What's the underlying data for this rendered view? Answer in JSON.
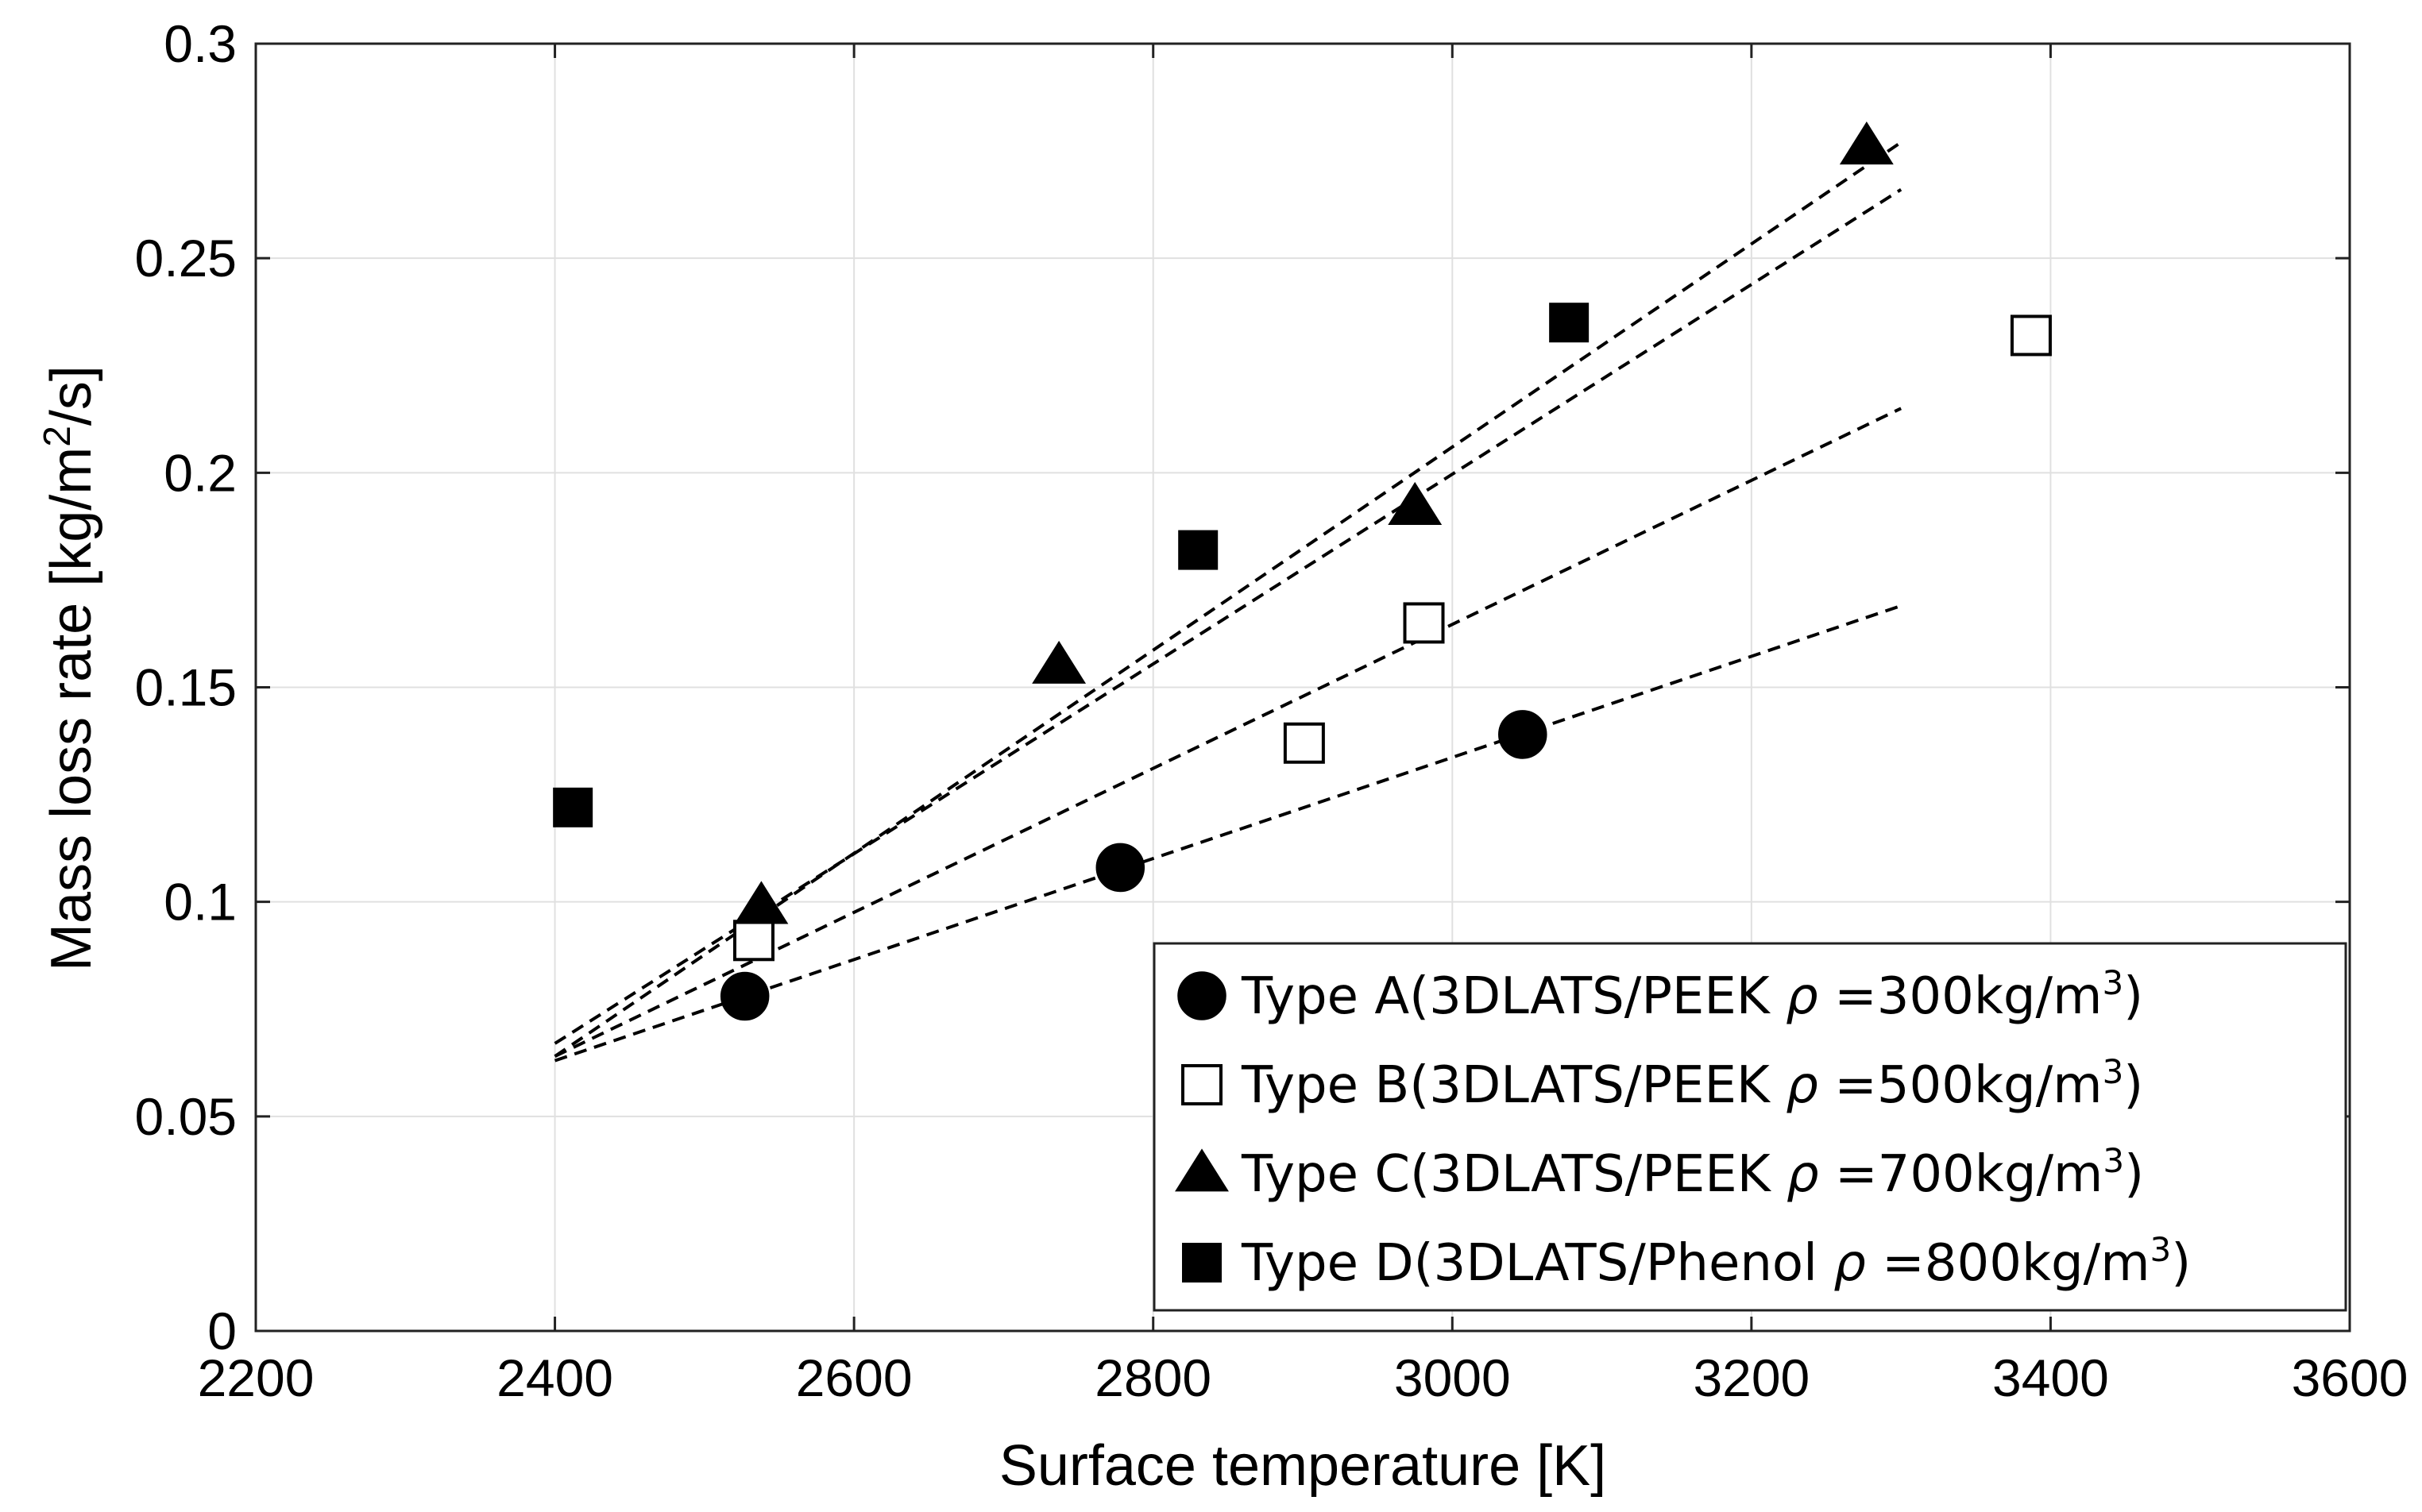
{
  "chart_data": {
    "type": "scatter",
    "xlabel": "Surface temperature [K]",
    "ylabel_main": "Mass loss rate [kg/m",
    "ylabel_sup": "2",
    "ylabel_end": "/s]",
    "xlim": [
      2200,
      3600
    ],
    "ylim": [
      0,
      0.3
    ],
    "grid": true,
    "legend_position": "bottom-right",
    "x_ticks": [
      2200,
      2400,
      2600,
      2800,
      3000,
      3200,
      3400,
      3600
    ],
    "x_tick_labels": [
      "2200",
      "2400",
      "2600",
      "2800",
      "3000",
      "3200",
      "3400",
      "3600"
    ],
    "y_ticks": [
      0,
      0.05,
      0.1,
      0.15,
      0.2,
      0.25,
      0.3
    ],
    "y_tick_labels": [
      "0",
      "0.05",
      "0.1",
      "0.15",
      "0.2",
      "0.25",
      "0.3"
    ],
    "series": [
      {
        "name": "Type A",
        "label_prefix": "Type A(3DLATS/PEEK",
        "rho_symbol": "ρ",
        "label_value": "=300kg/m",
        "label_sup": "3",
        "label_suffix": ")",
        "marker": "circle",
        "filled": true,
        "points": [
          [
            2527,
            0.078
          ],
          [
            2778,
            0.108
          ],
          [
            3047,
            0.139
          ]
        ],
        "fit": [
          [
            2400,
            0.063
          ],
          [
            3300,
            0.169
          ]
        ]
      },
      {
        "name": "Type B",
        "label_prefix": "Type B(3DLATS/PEEK",
        "rho_symbol": "ρ",
        "label_value": "=500kg/m",
        "label_sup": "3",
        "label_suffix": ")",
        "marker": "square",
        "filled": false,
        "points": [
          [
            2533,
            0.091
          ],
          [
            2901,
            0.137
          ],
          [
            2981,
            0.165
          ],
          [
            3387,
            0.232
          ]
        ],
        "fit": [
          [
            2400,
            0.064
          ],
          [
            3300,
            0.215
          ]
        ]
      },
      {
        "name": "Type C",
        "label_prefix": "Type C(3DLATS/PEEK",
        "rho_symbol": "ρ",
        "label_value": "=700kg/m",
        "label_sup": "3",
        "label_suffix": ")",
        "marker": "triangle",
        "filled": true,
        "points": [
          [
            2538,
            0.099
          ],
          [
            2737,
            0.155
          ],
          [
            2975,
            0.192
          ],
          [
            3277,
            0.276
          ]
        ],
        "fit": [
          [
            2400,
            0.064
          ],
          [
            3300,
            0.277
          ]
        ]
      },
      {
        "name": "Type D",
        "label_prefix": "Type D(3DLATS/Phenol",
        "rho_symbol": "ρ",
        "label_value": "=800kg/m",
        "label_sup": "3",
        "label_suffix": ")",
        "marker": "square",
        "filled": true,
        "points": [
          [
            2412,
            0.122
          ],
          [
            2830,
            0.182
          ],
          [
            3078,
            0.235
          ]
        ],
        "fit": [
          [
            2400,
            0.067
          ],
          [
            3300,
            0.266
          ]
        ]
      }
    ]
  }
}
